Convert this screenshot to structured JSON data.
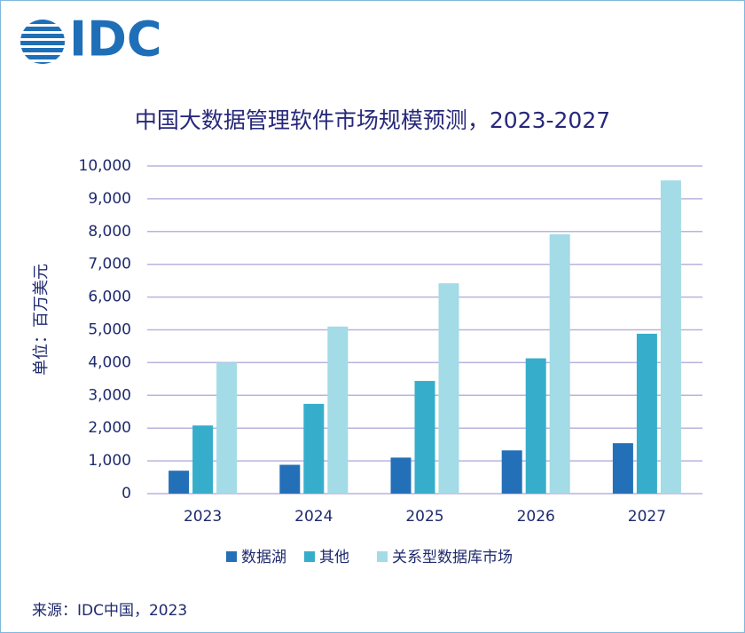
{
  "chart_data": {
    "type": "bar",
    "logo": "IDC",
    "title": "中国大数据管理软件市场规模预测，2023-2027",
    "ylabel": "单位：百万美元",
    "categories": [
      "2023",
      "2024",
      "2025",
      "2026",
      "2027"
    ],
    "series": [
      {
        "name": "数据湖",
        "color": "#2470b8",
        "values": [
          700,
          880,
          1100,
          1320,
          1540
        ]
      },
      {
        "name": "其他",
        "color": "#36aecb",
        "values": [
          2080,
          2740,
          3440,
          4130,
          4880
        ]
      },
      {
        "name": "关系型数据库市场",
        "color": "#a3dbe6",
        "values": [
          4000,
          5100,
          6420,
          7920,
          9560
        ]
      }
    ],
    "ylim": [
      0,
      10000
    ],
    "yticks": [
      0,
      {
        "value": 1000,
        "label": "1,000"
      },
      {
        "value": 2000,
        "label": "2,000"
      },
      {
        "value": 3000,
        "label": "3,000"
      },
      {
        "value": 4000,
        "label": "4,000"
      },
      {
        "value": 5000,
        "label": "5,000"
      },
      {
        "value": 6000,
        "label": "6,000"
      },
      {
        "value": 7000,
        "label": "7,000"
      },
      {
        "value": 8000,
        "label": "8,000"
      },
      {
        "value": 9000,
        "label": "9,000"
      },
      {
        "value": 10000,
        "label": "10,000"
      }
    ],
    "grid": true,
    "source": "来源：IDC中国，2023"
  }
}
